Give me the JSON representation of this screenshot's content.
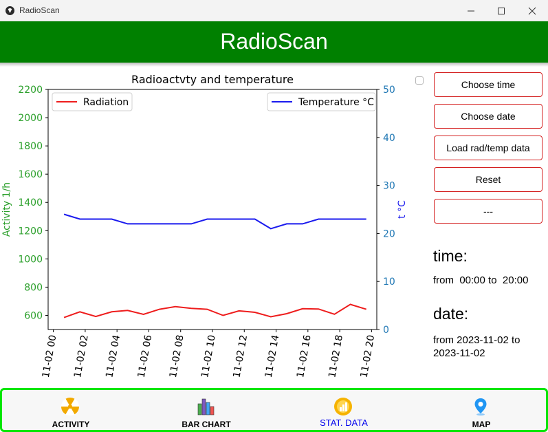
{
  "window": {
    "title": "RadioScan"
  },
  "header": {
    "title": "RadioScan"
  },
  "sidebar": {
    "buttons": [
      {
        "label": "Choose time"
      },
      {
        "label": "Choose date"
      },
      {
        "label": "Load rad/temp data"
      },
      {
        "label": "Reset"
      },
      {
        "label": "---"
      }
    ],
    "time_heading": "time:",
    "time_text": "from  00:00 to  20:00",
    "date_heading": "date:",
    "date_text": "from 2023-11-02 to\n2023-11-02"
  },
  "bottom_nav": [
    {
      "label": "ACTIVITY",
      "icon": "radiation-icon",
      "active": false
    },
    {
      "label": "BAR CHART",
      "icon": "bar-chart-icon",
      "active": false
    },
    {
      "label": "STAT. DATA",
      "icon": "stat-data-icon",
      "active": true
    },
    {
      "label": "MAP",
      "icon": "map-pin-icon",
      "active": false
    }
  ],
  "chart_data": {
    "type": "line",
    "title": "Radioactvty and temperature",
    "ylabel": "Activity 1/h",
    "y2label": "t °C",
    "x": [
      "11-02 00:40",
      "11-02 01:40",
      "11-02 02:40",
      "11-02 03:40",
      "11-02 04:40",
      "11-02 05:40",
      "11-02 06:40",
      "11-02 07:40",
      "11-02 08:40",
      "11-02 09:40",
      "11-02 10:40",
      "11-02 11:40",
      "11-02 12:40",
      "11-02 13:40",
      "11-02 14:40",
      "11-02 15:40",
      "11-02 16:40",
      "11-02 17:40",
      "11-02 18:40",
      "11-02 19:40"
    ],
    "xticks": [
      "11-02 00",
      "11-02 02",
      "11-02 04",
      "11-02 06",
      "11-02 08",
      "11-02 10",
      "11-02 12",
      "11-02 14",
      "11-02 16",
      "11-02 18",
      "11-02 20"
    ],
    "ylim": [
      500,
      2200
    ],
    "yticks": [
      600,
      800,
      1000,
      1200,
      1400,
      1600,
      1800,
      2000,
      2200
    ],
    "y2lim": [
      0,
      50
    ],
    "y2ticks": [
      0,
      10,
      20,
      30,
      40,
      50
    ],
    "series": [
      {
        "name": "Radiation",
        "axis": "left",
        "color": "#ee1c1c",
        "values": [
          585,
          625,
          592,
          625,
          635,
          607,
          643,
          662,
          650,
          643,
          600,
          632,
          622,
          590,
          612,
          647,
          645,
          608,
          678,
          643
        ]
      },
      {
        "name": "Temperature °C",
        "axis": "right",
        "color": "#1a1aee",
        "values": [
          24,
          23,
          23,
          23,
          22,
          22,
          22,
          22,
          22,
          23,
          23,
          23,
          23,
          21,
          22,
          22,
          23,
          23,
          23,
          23
        ]
      }
    ],
    "legend": [
      "top-left",
      "top-right"
    ],
    "colors": {
      "left_axis": "#2ca02c",
      "right_axis": "#1f77b4",
      "right_label": "#1a1aee"
    },
    "grid": false
  }
}
